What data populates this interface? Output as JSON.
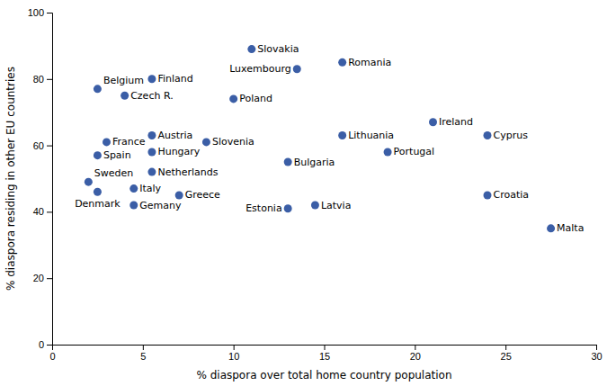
{
  "chart_data": {
    "type": "scatter",
    "labels": [
      "Slovakia",
      "Romania",
      "Luxembourg",
      "Finland",
      "Belgium",
      "Czech R.",
      "Poland",
      "Ireland",
      "Austria",
      "Slovenia",
      "France",
      "Cyprus",
      "Lithuania",
      "Hungary",
      "Spain",
      "Portugal",
      "Bulgaria",
      "Netherlands",
      "Sweden",
      "Denmark",
      "Italy",
      "Greece",
      "Gemany",
      "Croatia",
      "Latvia",
      "Estonia",
      "Malta"
    ],
    "x": [
      11,
      16,
      13.5,
      5.5,
      2.5,
      4,
      10,
      21,
      5.5,
      8.5,
      3,
      24,
      16,
      5.5,
      2.5,
      18.5,
      13,
      5.5,
      2,
      2.5,
      4.5,
      7,
      4.5,
      24,
      14.5,
      13,
      27.5
    ],
    "values": [
      89,
      85,
      83,
      80,
      77,
      75,
      74,
      67,
      63,
      61,
      61,
      63,
      63,
      58,
      57,
      58,
      55,
      52,
      49,
      46,
      47,
      45,
      42,
      45,
      42,
      41,
      35
    ],
    "color": "#3B5EA6",
    "xlabel": "% diaspora over total home country population",
    "ylabel": "% diaspora residing in other EU countries",
    "xlim": [
      0,
      30
    ],
    "ylim": [
      0,
      100
    ],
    "xticks": [
      0,
      5,
      10,
      15,
      20,
      25,
      30
    ],
    "yticks": [
      0,
      20,
      40,
      60,
      80,
      100
    ],
    "grid": false
  }
}
